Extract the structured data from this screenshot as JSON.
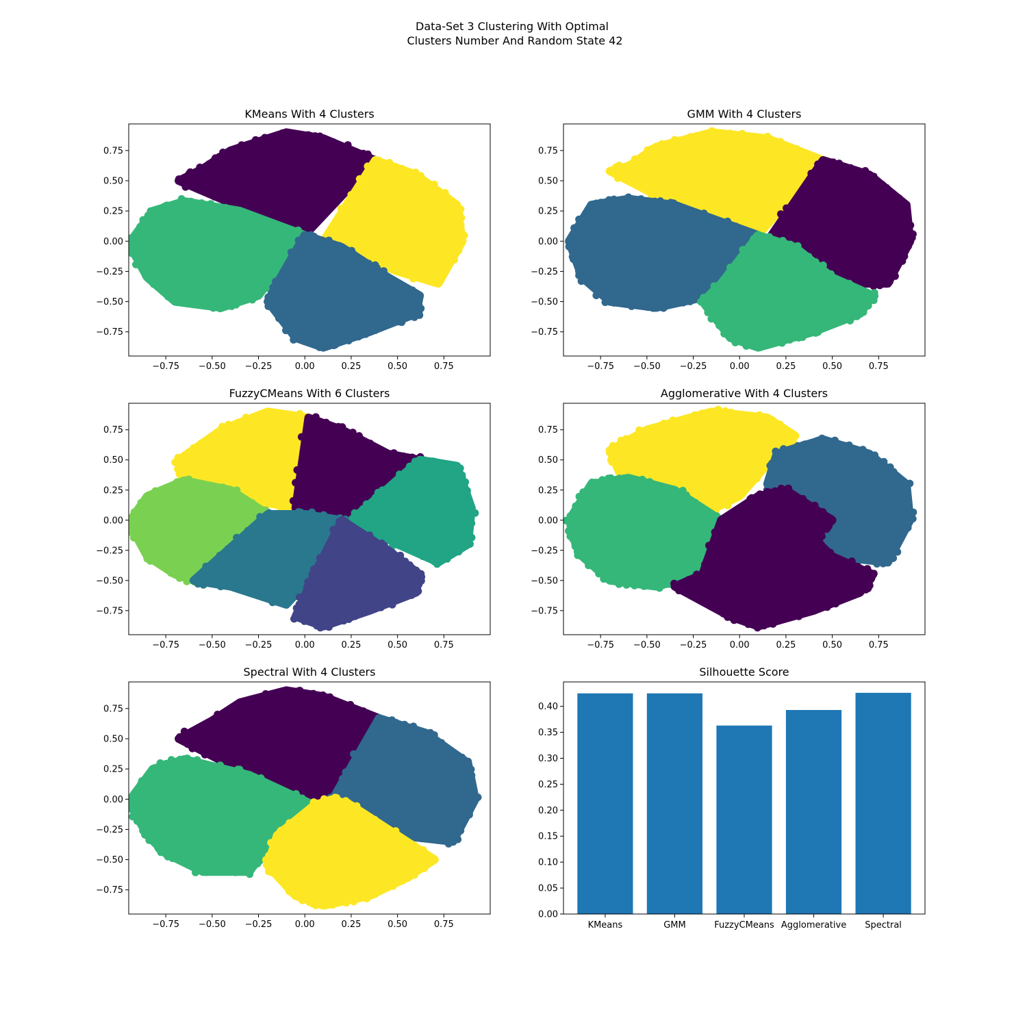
{
  "figure": {
    "title_line1": "Data-Set 3 Clustering With Optimal",
    "title_line2": "Clusters Number And Random State 42"
  },
  "palette": {
    "c0": "#440154",
    "c1": "#414487",
    "c2": "#31688e",
    "c3": "#2a788e",
    "c4": "#21a585",
    "c5": "#35b779",
    "c6": "#7ad151",
    "c7": "#fde725",
    "bar": "#1f77b4"
  },
  "scatter_ticks": {
    "x": [
      "−0.75",
      "−0.50",
      "−0.25",
      "0.00",
      "0.25",
      "0.50",
      "0.75"
    ],
    "x_values": [
      -0.75,
      -0.5,
      -0.25,
      0,
      0.25,
      0.5,
      0.75
    ],
    "y": [
      "0.75",
      "0.50",
      "0.25",
      "0.00",
      "−0.25",
      "−0.50",
      "−0.75"
    ],
    "y_values": [
      0.75,
      0.5,
      0.25,
      0,
      -0.25,
      -0.5,
      -0.75
    ]
  },
  "chart_data": [
    {
      "type": "scatter",
      "title": "KMeans With 4 Clusters",
      "xlim": [
        -0.95,
        1.0
      ],
      "ylim": [
        -0.95,
        0.97
      ],
      "clusters": [
        {
          "label": "upper",
          "color": "#440154",
          "vertices": [
            [
              -0.68,
              0.5
            ],
            [
              -0.55,
              0.6
            ],
            [
              -0.4,
              0.75
            ],
            [
              -0.1,
              0.9
            ],
            [
              0.1,
              0.85
            ],
            [
              0.38,
              0.67
            ],
            [
              0.0,
              0.05
            ],
            [
              -0.3,
              0.25
            ]
          ]
        },
        {
          "label": "right",
          "color": "#fde725",
          "vertices": [
            [
              0.38,
              0.67
            ],
            [
              0.6,
              0.55
            ],
            [
              0.82,
              0.3
            ],
            [
              0.85,
              0.0
            ],
            [
              0.72,
              -0.35
            ],
            [
              0.5,
              -0.25
            ],
            [
              0.1,
              0.0
            ]
          ]
        },
        {
          "label": "left",
          "color": "#35b779",
          "vertices": [
            [
              -0.95,
              -0.02
            ],
            [
              -0.82,
              0.25
            ],
            [
              -0.65,
              0.33
            ],
            [
              -0.35,
              0.25
            ],
            [
              0.0,
              0.05
            ],
            [
              -0.25,
              -0.45
            ],
            [
              -0.45,
              -0.55
            ],
            [
              -0.7,
              -0.5
            ],
            [
              -0.85,
              -0.3
            ]
          ]
        },
        {
          "label": "bottom",
          "color": "#31688e",
          "vertices": [
            [
              0.0,
              0.05
            ],
            [
              0.2,
              -0.05
            ],
            [
              0.45,
              -0.3
            ],
            [
              0.62,
              -0.45
            ],
            [
              0.6,
              -0.6
            ],
            [
              0.35,
              -0.75
            ],
            [
              0.1,
              -0.88
            ],
            [
              -0.05,
              -0.8
            ],
            [
              -0.2,
              -0.5
            ],
            [
              -0.15,
              -0.35
            ]
          ]
        }
      ]
    },
    {
      "type": "scatter",
      "title": "GMM With 4 Clusters",
      "xlim": [
        -0.95,
        1.0
      ],
      "ylim": [
        -0.95,
        0.97
      ],
      "clusters": [
        {
          "label": "upper",
          "color": "#fde725",
          "vertices": [
            [
              -0.7,
              0.58
            ],
            [
              -0.6,
              0.62
            ],
            [
              -0.45,
              0.78
            ],
            [
              -0.15,
              0.9
            ],
            [
              0.15,
              0.85
            ],
            [
              0.45,
              0.67
            ],
            [
              0.1,
              0.05
            ],
            [
              -0.35,
              0.3
            ]
          ]
        },
        {
          "label": "right",
          "color": "#440154",
          "vertices": [
            [
              0.45,
              0.67
            ],
            [
              0.7,
              0.55
            ],
            [
              0.9,
              0.3
            ],
            [
              0.92,
              0.0
            ],
            [
              0.8,
              -0.35
            ],
            [
              0.55,
              -0.35
            ],
            [
              0.15,
              0.0
            ]
          ]
        },
        {
          "label": "left",
          "color": "#31688e",
          "vertices": [
            [
              -0.92,
              0.0
            ],
            [
              -0.8,
              0.3
            ],
            [
              -0.6,
              0.35
            ],
            [
              -0.35,
              0.3
            ],
            [
              0.1,
              0.05
            ],
            [
              -0.15,
              -0.45
            ],
            [
              -0.45,
              -0.55
            ],
            [
              -0.7,
              -0.5
            ],
            [
              -0.85,
              -0.3
            ]
          ]
        },
        {
          "label": "bottom",
          "color": "#35b779",
          "vertices": [
            [
              0.1,
              0.05
            ],
            [
              0.3,
              -0.05
            ],
            [
              0.5,
              -0.3
            ],
            [
              0.72,
              -0.45
            ],
            [
              0.65,
              -0.6
            ],
            [
              0.4,
              -0.75
            ],
            [
              0.1,
              -0.88
            ],
            [
              -0.05,
              -0.8
            ],
            [
              -0.2,
              -0.5
            ],
            [
              -0.1,
              -0.35
            ]
          ]
        }
      ]
    },
    {
      "type": "scatter",
      "title": "FuzzyCMeans With 6 Clusters",
      "xlim": [
        -0.95,
        1.0
      ],
      "ylim": [
        -0.95,
        0.97
      ],
      "clusters": [
        {
          "label": "upper-left",
          "color": "#fde725",
          "vertices": [
            [
              -0.68,
              0.5
            ],
            [
              -0.45,
              0.75
            ],
            [
              -0.2,
              0.9
            ],
            [
              0.02,
              0.85
            ],
            [
              -0.05,
              0.1
            ],
            [
              -0.4,
              0.2
            ],
            [
              -0.65,
              0.35
            ]
          ]
        },
        {
          "label": "upper-right",
          "color": "#440154",
          "vertices": [
            [
              0.02,
              0.85
            ],
            [
              0.2,
              0.75
            ],
            [
              0.45,
              0.55
            ],
            [
              0.62,
              0.5
            ],
            [
              0.4,
              0.2
            ],
            [
              0.2,
              0.0
            ],
            [
              -0.05,
              0.1
            ]
          ]
        },
        {
          "label": "right",
          "color": "#21a585",
          "vertices": [
            [
              0.62,
              0.5
            ],
            [
              0.82,
              0.45
            ],
            [
              0.9,
              0.1
            ],
            [
              0.88,
              -0.2
            ],
            [
              0.72,
              -0.35
            ],
            [
              0.5,
              -0.2
            ],
            [
              0.25,
              0.0
            ],
            [
              0.4,
              0.2
            ]
          ]
        },
        {
          "label": "left",
          "color": "#7ad151",
          "vertices": [
            [
              -0.95,
              -0.02
            ],
            [
              -0.85,
              0.2
            ],
            [
              -0.65,
              0.33
            ],
            [
              -0.4,
              0.25
            ],
            [
              -0.2,
              0.05
            ],
            [
              -0.5,
              -0.3
            ],
            [
              -0.6,
              -0.5
            ],
            [
              -0.7,
              -0.45
            ],
            [
              -0.85,
              -0.3
            ]
          ]
        },
        {
          "label": "center",
          "color": "#2a788e",
          "vertices": [
            [
              -0.2,
              0.05
            ],
            [
              0.0,
              0.05
            ],
            [
              0.2,
              0.0
            ],
            [
              0.05,
              -0.45
            ],
            [
              -0.1,
              -0.7
            ],
            [
              -0.4,
              -0.55
            ],
            [
              -0.6,
              -0.5
            ]
          ]
        },
        {
          "label": "bottom",
          "color": "#414487",
          "vertices": [
            [
              0.2,
              0.0
            ],
            [
              0.45,
              -0.25
            ],
            [
              0.62,
              -0.45
            ],
            [
              0.6,
              -0.6
            ],
            [
              0.35,
              -0.75
            ],
            [
              0.1,
              -0.88
            ],
            [
              -0.05,
              -0.8
            ],
            [
              0.05,
              -0.45
            ]
          ]
        }
      ]
    },
    {
      "type": "scatter",
      "title": "Agglomerative With 4 Clusters",
      "xlim": [
        -0.95,
        1.0
      ],
      "ylim": [
        -0.95,
        0.97
      ],
      "clusters": [
        {
          "label": "upper",
          "color": "#fde725",
          "vertices": [
            [
              -0.7,
              0.58
            ],
            [
              -0.5,
              0.75
            ],
            [
              -0.15,
              0.9
            ],
            [
              0.15,
              0.85
            ],
            [
              0.3,
              0.7
            ],
            [
              0.2,
              0.55
            ],
            [
              0.0,
              0.2
            ],
            [
              -0.2,
              0.05
            ],
            [
              -0.4,
              0.3
            ],
            [
              -0.65,
              0.4
            ]
          ]
        },
        {
          "label": "right",
          "color": "#31688e",
          "vertices": [
            [
              0.2,
              0.55
            ],
            [
              0.45,
              0.67
            ],
            [
              0.7,
              0.55
            ],
            [
              0.9,
              0.3
            ],
            [
              0.92,
              0.0
            ],
            [
              0.8,
              -0.35
            ],
            [
              0.5,
              -0.3
            ],
            [
              0.4,
              -0.15
            ],
            [
              0.5,
              0.0
            ],
            [
              0.2,
              0.2
            ],
            [
              0.15,
              0.3
            ]
          ]
        },
        {
          "label": "left",
          "color": "#35b779",
          "vertices": [
            [
              -0.92,
              0.0
            ],
            [
              -0.8,
              0.3
            ],
            [
              -0.6,
              0.35
            ],
            [
              -0.35,
              0.25
            ],
            [
              -0.1,
              0.0
            ],
            [
              -0.2,
              -0.45
            ],
            [
              -0.45,
              -0.55
            ],
            [
              -0.7,
              -0.5
            ],
            [
              -0.85,
              -0.3
            ]
          ]
        },
        {
          "label": "bottom",
          "color": "#440154",
          "vertices": [
            [
              -0.1,
              0.0
            ],
            [
              0.1,
              0.2
            ],
            [
              0.25,
              0.25
            ],
            [
              0.5,
              0.0
            ],
            [
              0.4,
              -0.15
            ],
            [
              0.5,
              -0.3
            ],
            [
              0.72,
              -0.45
            ],
            [
              0.65,
              -0.6
            ],
            [
              0.4,
              -0.75
            ],
            [
              0.1,
              -0.88
            ],
            [
              -0.05,
              -0.8
            ],
            [
              -0.35,
              -0.55
            ],
            [
              -0.2,
              -0.45
            ]
          ]
        }
      ]
    },
    {
      "type": "scatter",
      "title": "Spectral With 4 Clusters",
      "xlim": [
        -0.95,
        1.0
      ],
      "ylim": [
        -0.95,
        0.97
      ],
      "clusters": [
        {
          "label": "upper",
          "color": "#440154",
          "vertices": [
            [
              -0.68,
              0.5
            ],
            [
              -0.5,
              0.65
            ],
            [
              -0.35,
              0.8
            ],
            [
              -0.1,
              0.9
            ],
            [
              0.1,
              0.85
            ],
            [
              0.4,
              0.67
            ],
            [
              0.15,
              0.0
            ],
            [
              0.0,
              -0.05
            ],
            [
              -0.3,
              0.2
            ]
          ]
        },
        {
          "label": "right",
          "color": "#31688e",
          "vertices": [
            [
              0.4,
              0.67
            ],
            [
              0.65,
              0.55
            ],
            [
              0.88,
              0.3
            ],
            [
              0.92,
              0.0
            ],
            [
              0.8,
              -0.35
            ],
            [
              0.5,
              -0.3
            ],
            [
              0.25,
              -0.05
            ],
            [
              0.15,
              0.0
            ]
          ]
        },
        {
          "label": "left",
          "color": "#35b779",
          "vertices": [
            [
              -0.95,
              -0.02
            ],
            [
              -0.82,
              0.25
            ],
            [
              -0.65,
              0.33
            ],
            [
              -0.3,
              0.2
            ],
            [
              0.05,
              -0.05
            ],
            [
              -0.15,
              -0.3
            ],
            [
              -0.3,
              -0.6
            ],
            [
              -0.55,
              -0.6
            ],
            [
              -0.75,
              -0.45
            ],
            [
              -0.85,
              -0.3
            ]
          ]
        },
        {
          "label": "bottom",
          "color": "#fde725",
          "vertices": [
            [
              0.05,
              -0.05
            ],
            [
              0.15,
              0.0
            ],
            [
              0.25,
              -0.05
            ],
            [
              0.5,
              -0.3
            ],
            [
              0.7,
              -0.5
            ],
            [
              0.55,
              -0.65
            ],
            [
              0.35,
              -0.8
            ],
            [
              0.1,
              -0.88
            ],
            [
              -0.05,
              -0.8
            ],
            [
              -0.2,
              -0.55
            ],
            [
              -0.15,
              -0.3
            ]
          ]
        }
      ]
    },
    {
      "type": "bar",
      "title": "Silhouette Score",
      "categories": [
        "KMeans",
        "GMM",
        "FuzzyCMeans",
        "Agglomerative",
        "Spectral"
      ],
      "values": [
        0.425,
        0.425,
        0.363,
        0.393,
        0.426
      ],
      "ylim": [
        0,
        0.447
      ],
      "yticks": [
        "0.00",
        "0.05",
        "0.10",
        "0.15",
        "0.20",
        "0.25",
        "0.30",
        "0.35",
        "0.40"
      ],
      "ytick_values": [
        0,
        0.05,
        0.1,
        0.15,
        0.2,
        0.25,
        0.3,
        0.35,
        0.4
      ],
      "color": "#1f77b4"
    }
  ]
}
